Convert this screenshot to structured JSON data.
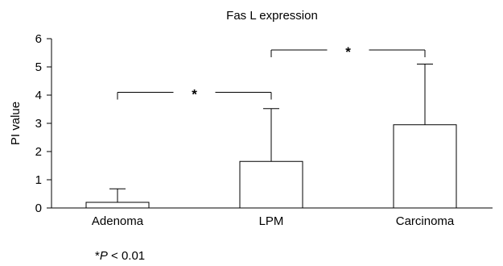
{
  "chart_data": {
    "type": "bar",
    "title": "Fas L expression",
    "xlabel": "",
    "ylabel": "PI value",
    "ylim": [
      0,
      6
    ],
    "yticks": [
      "0",
      "1",
      "2",
      "3",
      "4",
      "5",
      "6"
    ],
    "categories": [
      "Adenoma",
      "LPM",
      "Carcinoma"
    ],
    "values": [
      0.2,
      1.65,
      2.95
    ],
    "error_upper": [
      0.68,
      3.52,
      5.1
    ],
    "error_bars": "upper-only",
    "significance": [
      {
        "from": "Adenoma",
        "to": "LPM",
        "y": 4.1,
        "label": "*"
      },
      {
        "from": "LPM",
        "to": "Carcinoma",
        "y": 5.6,
        "label": "*"
      }
    ],
    "footnote": {
      "prefix": "*",
      "italic": "P",
      "suffix": " < 0.01"
    },
    "grid": false,
    "legend": "none",
    "bar_fill": "#ffffff",
    "bar_stroke": "#000000"
  }
}
